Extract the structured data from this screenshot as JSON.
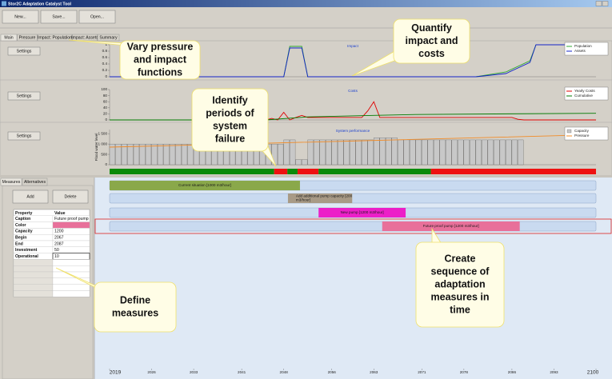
{
  "window": {
    "title": "Stor2C Adaptation Catalyst Tool"
  },
  "toolbar": [
    "New...",
    "Save...",
    "Open..."
  ],
  "tabs": [
    "Main",
    "Pressure",
    "Impact: Population",
    "Impact: Assets",
    "Summary"
  ],
  "settings_button": "Settings",
  "chart_data": [
    {
      "type": "line",
      "title": "Impact",
      "xlim": [
        2019,
        2100
      ],
      "ylim": [
        0,
        1
      ],
      "yticks": [
        0,
        0.2,
        0.4,
        0.6,
        0.8,
        1
      ],
      "legend": "top-right",
      "series": [
        {
          "name": "Population",
          "color": "#2fa82f",
          "x": [
            2019,
            2048,
            2049,
            2051,
            2052,
            2080,
            2085,
            2089,
            2090,
            2100
          ],
          "values": [
            0,
            0,
            0.95,
            0.95,
            0,
            0,
            0.15,
            0.5,
            1,
            1
          ]
        },
        {
          "name": "Assets",
          "color": "#1424c8",
          "x": [
            2019,
            2048,
            2049,
            2051,
            2052,
            2080,
            2085,
            2089,
            2090,
            2100
          ],
          "values": [
            0,
            0,
            0.9,
            0.9,
            0,
            0,
            0.1,
            0.45,
            1,
            1
          ]
        }
      ]
    },
    {
      "type": "line",
      "title": "Costs",
      "xlim": [
        2019,
        2100
      ],
      "ylim": [
        0,
        100
      ],
      "yticks": [
        0,
        20,
        40,
        60,
        80,
        100
      ],
      "legend": "top-right",
      "series": [
        {
          "name": "Yearly Costs",
          "color": "#e00000",
          "x": [
            2019,
            2045,
            2046,
            2047,
            2048,
            2049,
            2050,
            2051,
            2052,
            2061,
            2062,
            2063,
            2064,
            2065,
            2086,
            2087,
            2088,
            2100
          ],
          "values": [
            0,
            0,
            5,
            0,
            25,
            0,
            8,
            15,
            8,
            8,
            30,
            60,
            8,
            8,
            8,
            2,
            0,
            0
          ]
        },
        {
          "name": "Cumulative",
          "color": "#007a00",
          "x": [
            2019,
            2045,
            2052,
            2063,
            2070,
            2100
          ],
          "values": [
            0,
            0,
            10,
            15,
            18,
            22
          ]
        }
      ]
    },
    {
      "type": "combo",
      "title": "System performance",
      "y_label": "Flood water level",
      "xlim": [
        2019,
        2100
      ],
      "ylim": [
        0,
        1700
      ],
      "yticks": [
        0,
        500,
        {
          "value": 1000,
          "label": "1 000"
        },
        {
          "value": 1500,
          "label": "1 500"
        }
      ],
      "legend": "top-right",
      "series": [
        {
          "name": "Capacity",
          "kind": "bar",
          "color": "#c8c8c8",
          "x": [
            2019,
            2020,
            2021,
            2022,
            2023,
            2024,
            2025,
            2026,
            2027,
            2028,
            2029,
            2030,
            2031,
            2032,
            2033,
            2034,
            2035,
            2036,
            2037,
            2038,
            2039,
            2040,
            2041,
            2042,
            2043,
            2044,
            2045,
            2046,
            2047,
            2048,
            2049,
            2050,
            2051,
            2052,
            2053,
            2054,
            2055,
            2056,
            2057,
            2058,
            2059,
            2060,
            2061,
            2062,
            2063,
            2064,
            2065,
            2066,
            2067,
            2068,
            2069,
            2070,
            2071,
            2072,
            2073,
            2074,
            2075,
            2076,
            2077,
            2078,
            2079,
            2080,
            2081,
            2082,
            2083,
            2084,
            2085,
            2086,
            2087
          ],
          "values": [
            1000,
            1000,
            1000,
            1000,
            1000,
            1000,
            1000,
            1000,
            1000,
            1000,
            1000,
            1000,
            1000,
            1000,
            1000,
            1000,
            1000,
            1000,
            1000,
            1000,
            1000,
            1000,
            1000,
            1000,
            1000,
            1000,
            1000,
            1000,
            1000,
            1200,
            1200,
            250,
            250,
            1200,
            1200,
            1200,
            1200,
            1200,
            1200,
            1200,
            1200,
            1200,
            1200,
            1200,
            1300,
            1300,
            1300,
            1300,
            1200,
            1200,
            1200,
            1200,
            1200,
            1200,
            1200,
            1200,
            1200,
            1200,
            1200,
            1200,
            1200,
            1200,
            1200,
            1200,
            1200,
            1200,
            1200,
            1200,
            1200
          ]
        },
        {
          "name": "Pressure",
          "kind": "line",
          "color": "#f28c28",
          "x": [
            2019,
            2040,
            2060,
            2080,
            2100
          ],
          "values": [
            850,
            1000,
            1150,
            1300,
            1450
          ]
        }
      ]
    }
  ],
  "failure_strip": {
    "xlim": [
      2019,
      2100
    ],
    "periods": [
      {
        "from": 2019,
        "to": 2046.4,
        "color": "#0a8a0a"
      },
      {
        "from": 2046.4,
        "to": 2048.6,
        "color": "#ee1111"
      },
      {
        "from": 2048.6,
        "to": 2050.3,
        "color": "#0a8a0a"
      },
      {
        "from": 2050.3,
        "to": 2053.8,
        "color": "#ee1111"
      },
      {
        "from": 2053.8,
        "to": 2072.5,
        "color": "#0a8a0a"
      },
      {
        "from": 2072.5,
        "to": 2100,
        "color": "#ee1111"
      }
    ]
  },
  "measure_tabs": [
    "Measures",
    "Alternatives"
  ],
  "buttons": [
    "Add",
    "Delete"
  ],
  "table": {
    "header": [
      "Property",
      "Value"
    ],
    "rows": [
      {
        "property": "Caption",
        "value": "Future proof pump"
      },
      {
        "property": "Color",
        "color": "#e8709a"
      },
      {
        "property": "Capacity",
        "value": "1200"
      },
      {
        "property": "Begin",
        "value": "2067"
      },
      {
        "property": "End",
        "value": "2087"
      },
      {
        "property": "Investment",
        "value": "50"
      },
      {
        "property": "Operational",
        "value": "10"
      }
    ]
  },
  "timeline": {
    "xlim": [
      2019,
      2100
    ],
    "xticks": [
      2019,
      2026,
      2033,
      2041,
      2048,
      2056,
      2063,
      2071,
      2078,
      2086,
      2093,
      2100
    ],
    "measures": [
      {
        "lines": [
          "Current situation [1000 m3/hour]"
        ],
        "begin": 2019,
        "end": 2050.7,
        "color": "#8aa84a",
        "text_color": "#1a1a1a"
      },
      {
        "lines": [
          "Add additional pump capacity [200",
          "m3/hour]"
        ],
        "begin": 2048.7,
        "end": 2059.4,
        "color": "#a89a86",
        "text_color": "#1a1a1a"
      },
      {
        "lines": [
          "New pump [1200 m3/hour]"
        ],
        "begin": 2053.8,
        "end": 2068.3,
        "color": "#ec1fc8",
        "text_color": "#1a1a1a"
      },
      {
        "lines": [
          "Future proof pump [1200 m3/hour]"
        ],
        "begin": 2064.4,
        "end": 2087.3,
        "color": "#e8709a",
        "text_color": "#1a1a1a"
      }
    ]
  },
  "callouts": [
    {
      "lines": [
        "Vary pressure",
        "and impact",
        "functions"
      ]
    },
    {
      "lines": [
        "Quantify",
        "impact and",
        "costs"
      ]
    },
    {
      "lines": [
        "Identify",
        "periods of",
        "system",
        "failure"
      ]
    },
    {
      "lines": [
        "Define",
        "measures"
      ]
    },
    {
      "lines": [
        "Create",
        "sequence of",
        "adaptation",
        "measures in",
        "time"
      ]
    }
  ]
}
